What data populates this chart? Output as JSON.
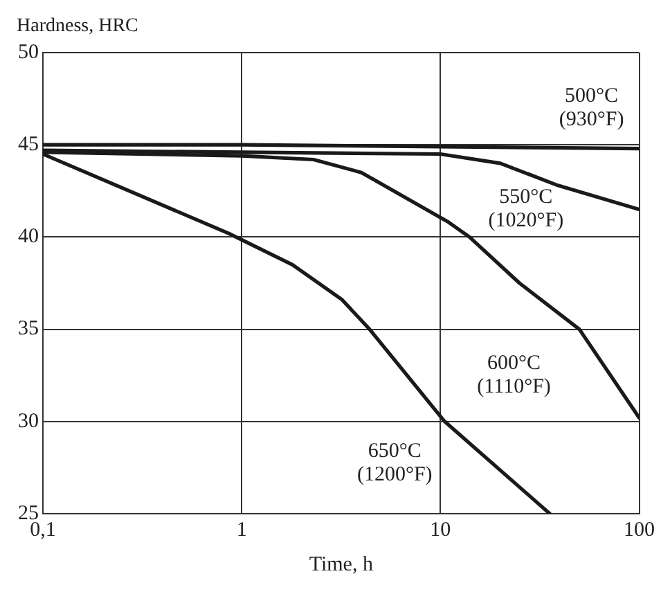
{
  "chart_data": {
    "type": "line",
    "ylabel": "Hardness, HRC",
    "xlabel": "Time, h",
    "log": "x",
    "xlim": [
      0.1,
      100
    ],
    "xticks": [
      {
        "value": 0.1,
        "label": "0,1"
      },
      1,
      10,
      100
    ],
    "ylim": [
      25,
      50
    ],
    "yticks": [
      25,
      30,
      35,
      40,
      45,
      50
    ],
    "grid": true,
    "legend": false,
    "marker": "none",
    "line_style": "solid",
    "series": [
      {
        "name": "500°C (930°F)",
        "color": "#1a1a1a",
        "x": [
          0.1,
          1,
          10,
          100
        ],
        "values": [
          45,
          45,
          44.9,
          44.8
        ]
      },
      {
        "name": "550°C (1020°F)",
        "color": "#1a1a1a",
        "x": [
          0.1,
          1,
          10,
          20,
          39,
          100
        ],
        "values": [
          44.7,
          44.6,
          44.5,
          44,
          42.8,
          41.5
        ]
      },
      {
        "name": "600°C (1110°F)",
        "color": "#1a1a1a",
        "x": [
          0.1,
          1,
          2.3,
          4,
          11,
          14,
          25,
          50,
          100
        ],
        "values": [
          44.6,
          44.4,
          44.2,
          43.5,
          40.8,
          40,
          37.5,
          35,
          30.2
        ]
      },
      {
        "name": "650°C (1200°F)",
        "color": "#1a1a1a",
        "x": [
          0.1,
          0.86,
          1.8,
          3.2,
          4.4,
          10.5,
          35.5
        ],
        "values": [
          44.5,
          40.2,
          38.5,
          36.6,
          35,
          30,
          25
        ]
      }
    ]
  }
}
